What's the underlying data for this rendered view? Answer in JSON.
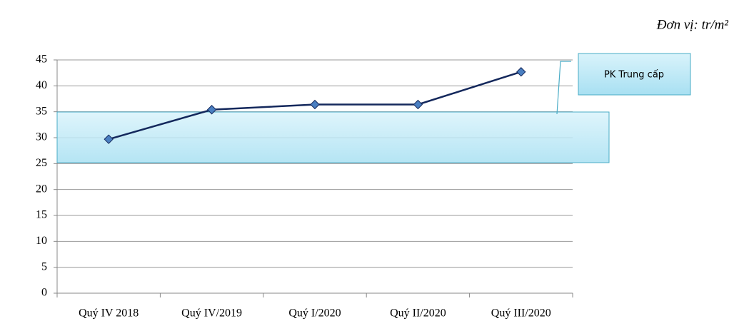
{
  "chart_data": {
    "type": "line",
    "unit_note": "Đơn vị: tr/m²",
    "categories": [
      "Quý IV 2018",
      "Quý IV/2019",
      "Quý I/2020",
      "Quý II/2020",
      "Quý III/2020"
    ],
    "series": [
      {
        "name": "PK Trung cấp",
        "color": "#14285c",
        "marker_color": "#4a7fc1",
        "values": [
          29.7,
          35.4,
          36.4,
          36.4,
          42.7
        ]
      }
    ],
    "ylim": [
      0,
      45
    ],
    "yticks": [
      0,
      5,
      10,
      15,
      20,
      25,
      30,
      35,
      40,
      45
    ],
    "grid": true,
    "legend": "right"
  }
}
